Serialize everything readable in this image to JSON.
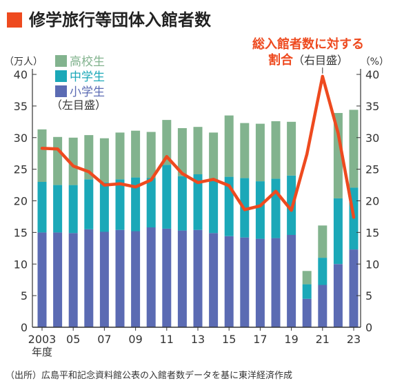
{
  "title": "修学旅行等団体入館者数",
  "source_note": "（出所）広島平和記念資料館公表の入館者数データを基に東洋経済作成",
  "colors": {
    "title_marker": "#ee4a1f",
    "elementary": "#5b6bb3",
    "junior_high": "#1ba8b8",
    "high_school": "#82b38e",
    "ratio_line": "#ee4a1f",
    "annotation": "#ee4a1f"
  },
  "chart_data": {
    "type": "bar",
    "stacked": true,
    "categories": [
      "2003",
      "2004",
      "2005",
      "2006",
      "2007",
      "2008",
      "2009",
      "2010",
      "2011",
      "2012",
      "2013",
      "2014",
      "2015",
      "2016",
      "2017",
      "2018",
      "2019",
      "2020",
      "2021",
      "2022",
      "2023"
    ],
    "x_tick_labels": [
      "2003",
      "05",
      "07",
      "09",
      "11",
      "13",
      "15",
      "17",
      "19",
      "21",
      "23"
    ],
    "x_tick_suffix": "年度",
    "left_axis": {
      "unit": "（万人）",
      "ticks": [
        "0",
        "5",
        "10",
        "15",
        "20",
        "25",
        "30",
        "35",
        "40"
      ],
      "ylim": [
        0,
        40
      ]
    },
    "right_axis": {
      "unit": "（%）",
      "ticks": [
        "0",
        "5",
        "10",
        "15",
        "20",
        "25",
        "30",
        "35",
        "40"
      ],
      "ylim": [
        0,
        40
      ]
    },
    "legend": {
      "items": [
        "高校生",
        "中学生",
        "小学生"
      ],
      "note": "（左目盛）"
    },
    "series": [
      {
        "name": "小学生",
        "values": [
          15.0,
          15.0,
          14.9,
          15.5,
          15.1,
          15.4,
          15.2,
          15.8,
          15.6,
          15.3,
          15.4,
          14.9,
          14.4,
          14.2,
          14.0,
          14.1,
          14.6,
          4.5,
          6.7,
          10.0,
          12.3
        ]
      },
      {
        "name": "中学生",
        "values": [
          8.0,
          7.5,
          7.6,
          7.9,
          7.8,
          8.0,
          8.5,
          7.8,
          10.1,
          8.6,
          8.8,
          8.6,
          9.4,
          9.4,
          9.1,
          9.4,
          9.4,
          2.3,
          4.3,
          10.4,
          9.8
        ]
      },
      {
        "name": "高校生",
        "values": [
          8.3,
          7.6,
          7.5,
          7.0,
          7.0,
          7.4,
          7.4,
          7.3,
          7.1,
          7.6,
          7.5,
          7.3,
          9.7,
          8.7,
          9.1,
          9.1,
          8.5,
          2.1,
          5.1,
          13.5,
          12.3
        ]
      }
    ],
    "ratio_series": {
      "axis": "right",
      "values": [
        28.3,
        28.2,
        25.5,
        24.6,
        22.5,
        22.7,
        22.2,
        23.3,
        27.0,
        24.3,
        22.9,
        23.4,
        22.4,
        18.6,
        19.2,
        21.5,
        18.5,
        27.4,
        39.7,
        30.7,
        17.4
      ]
    },
    "annotation": {
      "lines": [
        "総入館者数に対する",
        "割合"
      ],
      "suffix": "（右目盛）"
    },
    "grid": false
  }
}
